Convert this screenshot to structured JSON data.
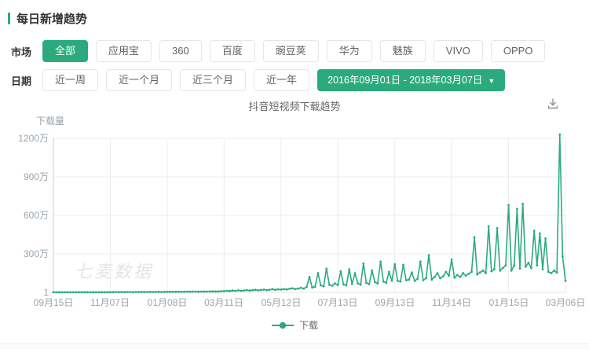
{
  "page": {
    "title": "每日新增趋势"
  },
  "filters": {
    "market": {
      "label": "市场",
      "options": [
        {
          "label": "全部",
          "selected": true
        },
        {
          "label": "应用宝",
          "selected": false
        },
        {
          "label": "360",
          "selected": false
        },
        {
          "label": "百度",
          "selected": false
        },
        {
          "label": "豌豆荚",
          "selected": false
        },
        {
          "label": "华为",
          "selected": false
        },
        {
          "label": "魅族",
          "selected": false
        },
        {
          "label": "VIVO",
          "selected": false
        },
        {
          "label": "OPPO",
          "selected": false
        }
      ]
    },
    "date": {
      "label": "日期",
      "options": [
        {
          "label": "近一周"
        },
        {
          "label": "近一个月"
        },
        {
          "label": "近三个月"
        },
        {
          "label": "近一年"
        }
      ],
      "range": "2016年09月01日 - 2018年03月07日",
      "caret": "▼"
    }
  },
  "chart_header": {
    "title": "抖音短视频下载趋势",
    "download_icon": "download-icon"
  },
  "watermark": "七麦数据",
  "colors": {
    "accent_green": "#2bab7d",
    "grid": "#ececec",
    "axis": "#c9ced4",
    "tick_text": "#9aa3ac"
  },
  "chart_data": {
    "type": "line",
    "title": "抖音短视频下载趋势",
    "ylabel": "下载量",
    "unit": "万",
    "ylim": [
      0,
      1200
    ],
    "grid": true,
    "legend_position": "bottom",
    "yticks": {
      "labels": [
        "1200万",
        "900万",
        "600万",
        "300万",
        "1"
      ],
      "values": [
        1200,
        900,
        600,
        300,
        0
      ]
    },
    "xticks": {
      "labels": [
        "09月15日",
        "11月07日",
        "01月08日",
        "03月11日",
        "05月12日",
        "07月13日",
        "09月13日",
        "11月14日",
        "01月15日",
        "03月06日"
      ],
      "indices": [
        0,
        20,
        40,
        60,
        80,
        100,
        120,
        140,
        160,
        180
      ]
    },
    "series": [
      {
        "name": "下载",
        "color": "#2bab7d",
        "values": [
          1,
          1,
          2,
          1,
          1,
          2,
          1,
          1,
          1,
          2,
          1,
          2,
          1,
          1,
          2,
          1,
          1,
          2,
          1,
          2,
          2,
          2,
          3,
          2,
          3,
          2,
          3,
          3,
          2,
          3,
          3,
          4,
          3,
          3,
          4,
          3,
          4,
          4,
          3,
          4,
          4,
          5,
          4,
          5,
          5,
          4,
          5,
          6,
          5,
          6,
          6,
          5,
          6,
          7,
          6,
          7,
          8,
          7,
          8,
          9,
          10,
          12,
          11,
          14,
          12,
          16,
          13,
          15,
          18,
          14,
          17,
          20,
          16,
          19,
          22,
          18,
          21,
          25,
          20,
          24,
          22,
          26,
          23,
          28,
          32,
          26,
          30,
          36,
          30,
          42,
          120,
          38,
          45,
          150,
          55,
          48,
          185,
          60,
          52,
          70,
          58,
          165,
          62,
          55,
          180,
          65,
          150,
          70,
          60,
          225,
          75,
          65,
          170,
          80,
          70,
          240,
          85,
          75,
          160,
          90,
          220,
          90,
          85,
          215,
          95,
          100,
          155,
          90,
          105,
          240,
          95,
          110,
          290,
          100,
          120,
          150,
          110,
          125,
          160,
          130,
          255,
          115,
          135,
          120,
          150,
          130,
          145,
          160,
          430,
          140,
          155,
          170,
          150,
          515,
          165,
          180,
          500,
          170,
          190,
          210,
          680,
          170,
          210,
          650,
          185,
          690,
          200,
          230,
          190,
          480,
          210,
          460,
          180,
          420,
          160,
          150,
          170,
          155,
          1230,
          280,
          90
        ]
      }
    ]
  },
  "legend": {
    "items": [
      {
        "label": "下载"
      }
    ]
  }
}
